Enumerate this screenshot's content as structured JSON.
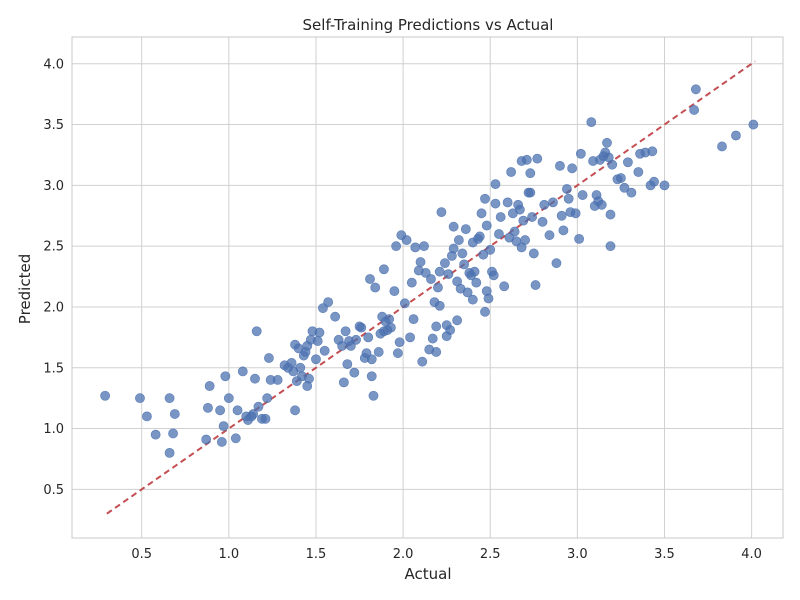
{
  "chart_data": {
    "type": "scatter",
    "title": "Self-Training Predictions vs Actual",
    "xlabel": "Actual",
    "ylabel": "Predicted",
    "xlim": [
      0.1,
      4.18
    ],
    "ylim": [
      0.1,
      4.22
    ],
    "xticks": [
      0.5,
      1.0,
      1.5,
      2.0,
      2.5,
      3.0,
      3.5,
      4.0
    ],
    "xtick_labels": [
      "0.5",
      "1.0",
      "1.5",
      "2.0",
      "2.5",
      "3.0",
      "3.5",
      "4.0"
    ],
    "yticks": [
      0.5,
      1.0,
      1.5,
      2.0,
      2.5,
      3.0,
      3.5,
      4.0
    ],
    "ytick_labels": [
      "0.5",
      "1.0",
      "1.5",
      "2.0",
      "2.5",
      "3.0",
      "3.5",
      "4.0"
    ],
    "grid": true,
    "reference_line": {
      "x": [
        0.3,
        4.02
      ],
      "y": [
        0.3,
        4.02
      ],
      "style": "dashed",
      "color": "#c44e52"
    },
    "point_color": "#4c72b0",
    "points": [
      [
        0.29,
        1.27
      ],
      [
        0.49,
        1.25
      ],
      [
        0.53,
        1.1
      ],
      [
        0.58,
        0.95
      ],
      [
        0.66,
        0.8
      ],
      [
        0.66,
        1.25
      ],
      [
        0.68,
        0.96
      ],
      [
        0.69,
        1.12
      ],
      [
        0.87,
        0.91
      ],
      [
        0.88,
        1.17
      ],
      [
        0.89,
        1.35
      ],
      [
        0.95,
        1.15
      ],
      [
        0.96,
        0.89
      ],
      [
        0.97,
        1.02
      ],
      [
        0.98,
        1.43
      ],
      [
        1.0,
        1.25
      ],
      [
        1.04,
        0.92
      ],
      [
        1.05,
        1.15
      ],
      [
        1.08,
        1.47
      ],
      [
        1.1,
        1.1
      ],
      [
        1.11,
        1.07
      ],
      [
        1.13,
        1.1
      ],
      [
        1.14,
        1.12
      ],
      [
        1.15,
        1.41
      ],
      [
        1.16,
        1.8
      ],
      [
        1.17,
        1.18
      ],
      [
        1.19,
        1.08
      ],
      [
        1.21,
        1.08
      ],
      [
        1.22,
        1.25
      ],
      [
        1.23,
        1.58
      ],
      [
        1.24,
        1.4
      ],
      [
        1.28,
        1.4
      ],
      [
        1.32,
        1.52
      ],
      [
        1.34,
        1.5
      ],
      [
        1.36,
        1.54
      ],
      [
        1.37,
        1.47
      ],
      [
        1.38,
        1.69
      ],
      [
        1.38,
        1.15
      ],
      [
        1.39,
        1.39
      ],
      [
        1.4,
        1.66
      ],
      [
        1.41,
        1.5
      ],
      [
        1.42,
        1.43
      ],
      [
        1.43,
        1.6
      ],
      [
        1.44,
        1.63
      ],
      [
        1.45,
        1.68
      ],
      [
        1.45,
        1.35
      ],
      [
        1.46,
        1.41
      ],
      [
        1.47,
        1.73
      ],
      [
        1.48,
        1.8
      ],
      [
        1.5,
        1.57
      ],
      [
        1.51,
        1.72
      ],
      [
        1.52,
        1.79
      ],
      [
        1.54,
        1.99
      ],
      [
        1.55,
        1.64
      ],
      [
        1.57,
        2.04
      ],
      [
        1.61,
        1.92
      ],
      [
        1.63,
        1.73
      ],
      [
        1.65,
        1.68
      ],
      [
        1.66,
        1.38
      ],
      [
        1.67,
        1.8
      ],
      [
        1.68,
        1.53
      ],
      [
        1.69,
        1.72
      ],
      [
        1.7,
        1.68
      ],
      [
        1.72,
        1.46
      ],
      [
        1.73,
        1.73
      ],
      [
        1.75,
        1.84
      ],
      [
        1.76,
        1.83
      ],
      [
        1.78,
        1.58
      ],
      [
        1.79,
        1.62
      ],
      [
        1.8,
        1.75
      ],
      [
        1.81,
        2.23
      ],
      [
        1.82,
        1.57
      ],
      [
        1.82,
        1.43
      ],
      [
        1.83,
        1.27
      ],
      [
        1.84,
        2.16
      ],
      [
        1.86,
        1.63
      ],
      [
        1.87,
        1.78
      ],
      [
        1.88,
        1.92
      ],
      [
        1.89,
        1.8
      ],
      [
        1.89,
        2.31
      ],
      [
        1.9,
        1.88
      ],
      [
        1.91,
        1.81
      ],
      [
        1.92,
        1.9
      ],
      [
        1.93,
        1.83
      ],
      [
        1.95,
        2.13
      ],
      [
        1.96,
        2.5
      ],
      [
        1.97,
        1.62
      ],
      [
        1.98,
        1.71
      ],
      [
        1.99,
        2.59
      ],
      [
        2.01,
        2.03
      ],
      [
        2.02,
        2.55
      ],
      [
        2.04,
        1.75
      ],
      [
        2.05,
        2.2
      ],
      [
        2.06,
        1.9
      ],
      [
        2.07,
        2.49
      ],
      [
        2.09,
        2.3
      ],
      [
        2.1,
        2.37
      ],
      [
        2.11,
        1.55
      ],
      [
        2.12,
        2.5
      ],
      [
        2.13,
        2.28
      ],
      [
        2.15,
        1.65
      ],
      [
        2.16,
        2.23
      ],
      [
        2.17,
        1.74
      ],
      [
        2.18,
        2.04
      ],
      [
        2.19,
        1.63
      ],
      [
        2.19,
        1.84
      ],
      [
        2.2,
        2.16
      ],
      [
        2.21,
        2.29
      ],
      [
        2.21,
        2.01
      ],
      [
        2.22,
        2.78
      ],
      [
        2.24,
        2.36
      ],
      [
        2.25,
        1.76
      ],
      [
        2.25,
        1.85
      ],
      [
        2.26,
        2.27
      ],
      [
        2.27,
        1.81
      ],
      [
        2.28,
        2.42
      ],
      [
        2.29,
        2.48
      ],
      [
        2.29,
        2.66
      ],
      [
        2.31,
        2.21
      ],
      [
        2.31,
        1.89
      ],
      [
        2.32,
        2.55
      ],
      [
        2.33,
        2.15
      ],
      [
        2.34,
        2.44
      ],
      [
        2.35,
        2.35
      ],
      [
        2.36,
        2.64
      ],
      [
        2.37,
        2.12
      ],
      [
        2.38,
        2.28
      ],
      [
        2.39,
        2.26
      ],
      [
        2.4,
        2.06
      ],
      [
        2.4,
        2.53
      ],
      [
        2.41,
        2.29
      ],
      [
        2.42,
        2.2
      ],
      [
        2.43,
        2.56
      ],
      [
        2.44,
        2.58
      ],
      [
        2.45,
        2.77
      ],
      [
        2.46,
        2.43
      ],
      [
        2.47,
        2.89
      ],
      [
        2.47,
        1.96
      ],
      [
        2.48,
        2.67
      ],
      [
        2.48,
        2.13
      ],
      [
        2.49,
        2.07
      ],
      [
        2.5,
        2.47
      ],
      [
        2.51,
        2.29
      ],
      [
        2.52,
        2.26
      ],
      [
        2.53,
        3.01
      ],
      [
        2.53,
        2.85
      ],
      [
        2.55,
        2.6
      ],
      [
        2.56,
        2.74
      ],
      [
        2.58,
        2.17
      ],
      [
        2.6,
        2.86
      ],
      [
        2.61,
        2.57
      ],
      [
        2.62,
        3.11
      ],
      [
        2.63,
        2.77
      ],
      [
        2.64,
        2.62
      ],
      [
        2.65,
        2.54
      ],
      [
        2.66,
        2.84
      ],
      [
        2.67,
        2.8
      ],
      [
        2.68,
        3.2
      ],
      [
        2.68,
        2.49
      ],
      [
        2.69,
        2.71
      ],
      [
        2.7,
        2.55
      ],
      [
        2.71,
        3.21
      ],
      [
        2.72,
        2.94
      ],
      [
        2.73,
        3.1
      ],
      [
        2.73,
        2.94
      ],
      [
        2.74,
        2.74
      ],
      [
        2.75,
        2.44
      ],
      [
        2.76,
        2.18
      ],
      [
        2.77,
        3.22
      ],
      [
        2.8,
        2.7
      ],
      [
        2.81,
        2.84
      ],
      [
        2.84,
        2.59
      ],
      [
        2.86,
        2.86
      ],
      [
        2.88,
        2.36
      ],
      [
        2.9,
        3.16
      ],
      [
        2.91,
        2.75
      ],
      [
        2.92,
        2.63
      ],
      [
        2.94,
        2.97
      ],
      [
        2.95,
        2.89
      ],
      [
        2.96,
        2.78
      ],
      [
        2.97,
        3.14
      ],
      [
        2.99,
        2.77
      ],
      [
        3.01,
        2.56
      ],
      [
        3.02,
        3.26
      ],
      [
        3.03,
        2.92
      ],
      [
        3.08,
        3.52
      ],
      [
        3.09,
        3.2
      ],
      [
        3.1,
        2.83
      ],
      [
        3.11,
        2.92
      ],
      [
        3.12,
        2.87
      ],
      [
        3.13,
        3.21
      ],
      [
        3.14,
        2.84
      ],
      [
        3.15,
        3.24
      ],
      [
        3.16,
        3.27
      ],
      [
        3.17,
        3.35
      ],
      [
        3.18,
        3.23
      ],
      [
        3.19,
        2.5
      ],
      [
        3.2,
        3.17
      ],
      [
        3.23,
        3.05
      ],
      [
        3.25,
        3.06
      ],
      [
        3.27,
        2.98
      ],
      [
        3.29,
        3.19
      ],
      [
        3.31,
        2.94
      ],
      [
        3.35,
        3.11
      ],
      [
        3.36,
        3.26
      ],
      [
        3.39,
        3.27
      ],
      [
        3.42,
        3.0
      ],
      [
        3.43,
        3.28
      ],
      [
        3.44,
        3.03
      ],
      [
        3.5,
        3.0
      ],
      [
        3.67,
        3.62
      ],
      [
        3.68,
        3.79
      ],
      [
        3.83,
        3.32
      ],
      [
        3.91,
        3.41
      ],
      [
        4.01,
        3.5
      ],
      [
        3.19,
        2.76
      ]
    ]
  }
}
